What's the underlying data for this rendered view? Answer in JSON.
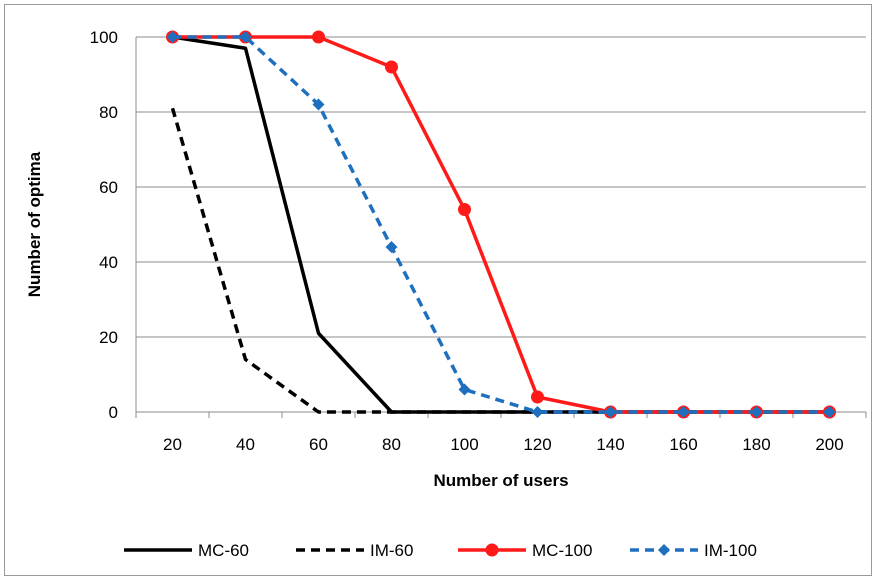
{
  "chart_data": {
    "type": "line",
    "x": [
      20,
      40,
      60,
      80,
      100,
      120,
      140,
      160,
      180,
      200
    ],
    "xlabel": "Number of users",
    "ylabel": "Number of optima",
    "ylim": [
      0,
      100
    ],
    "yticks": [
      0,
      20,
      40,
      60,
      80,
      100
    ],
    "grid": "horizontal",
    "legend_position": "bottom",
    "series": [
      {
        "name": "MC-60",
        "values": [
          100,
          97,
          21,
          0,
          0,
          0,
          0,
          0,
          0,
          0
        ],
        "color": "#000000",
        "dash": "solid",
        "marker": "none"
      },
      {
        "name": "IM-60",
        "values": [
          81,
          14,
          0,
          0,
          0,
          0,
          0,
          0,
          0,
          0
        ],
        "color": "#000000",
        "dash": "dashed",
        "marker": "none"
      },
      {
        "name": "MC-100",
        "values": [
          100,
          100,
          100,
          92,
          54,
          4,
          0,
          0,
          0,
          0
        ],
        "color": "#ff1a1a",
        "dash": "solid",
        "marker": "circle"
      },
      {
        "name": "IM-100",
        "values": [
          100,
          100,
          82,
          44,
          6,
          0,
          0,
          0,
          0,
          0
        ],
        "color": "#1f6fbf",
        "dash": "dashed",
        "marker": "diamond"
      }
    ]
  }
}
